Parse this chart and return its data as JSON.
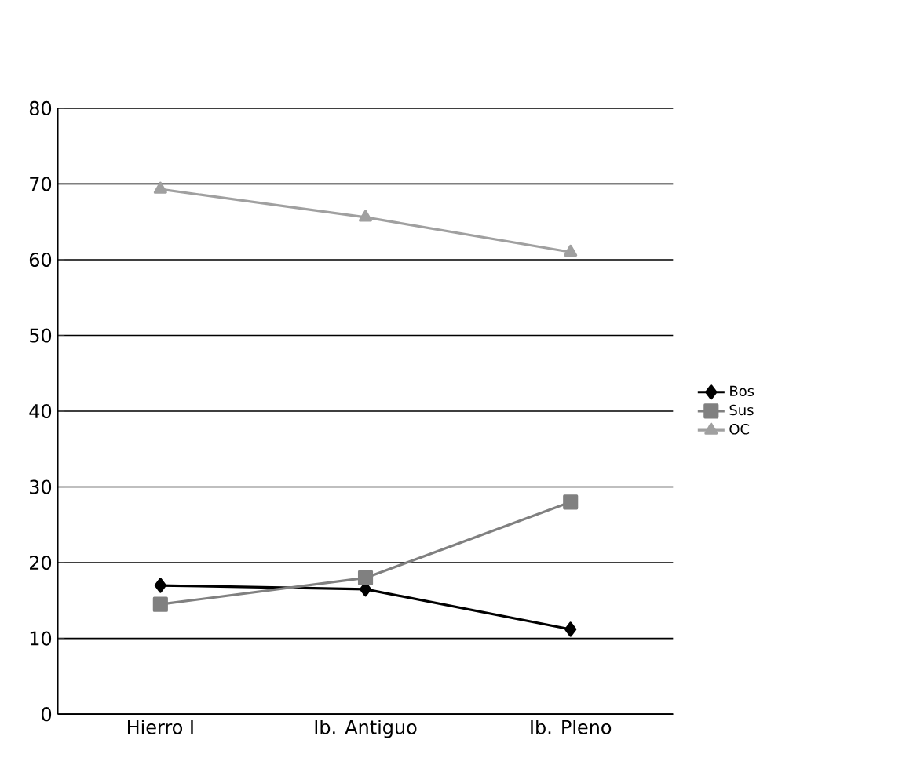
{
  "chart_data": {
    "type": "line",
    "categories": [
      "Hierro I",
      "Ib. Antiguo",
      "Ib. Pleno"
    ],
    "series": [
      {
        "name": "Bos",
        "color": "#000000",
        "marker": "diamond",
        "values": [
          17,
          16.5,
          11.2
        ]
      },
      {
        "name": "Sus",
        "color": "#808080",
        "marker": "square",
        "values": [
          14.5,
          18,
          28
        ]
      },
      {
        "name": "OC",
        "color": "#a0a0a0",
        "marker": "triangle",
        "values": [
          69.3,
          65.6,
          61
        ]
      }
    ],
    "ylim": [
      0,
      80
    ],
    "yticks": [
      0,
      10,
      20,
      30,
      40,
      50,
      60,
      70,
      80
    ],
    "grid": "y",
    "legend": "right"
  }
}
